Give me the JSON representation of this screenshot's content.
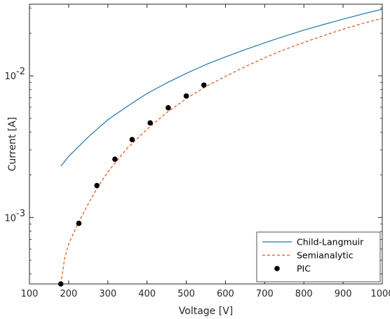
{
  "chart_data": {
    "type": "line",
    "title": "",
    "xlabel": "Voltage [V]",
    "ylabel": "Current [A]",
    "xlim": [
      100,
      1000
    ],
    "ylim": [
      0.00034,
      0.032
    ],
    "yscale": "log",
    "grid": false,
    "legend_position": "bottom-right",
    "x_ticks": [
      {
        "value": 100,
        "label": "100"
      },
      {
        "value": 200,
        "label": "200"
      },
      {
        "value": 300,
        "label": "300"
      },
      {
        "value": 400,
        "label": "400"
      },
      {
        "value": 500,
        "label": "500"
      },
      {
        "value": 600,
        "label": "600"
      },
      {
        "value": 700,
        "label": "700"
      },
      {
        "value": 800,
        "label": "800"
      },
      {
        "value": 900,
        "label": "900"
      },
      {
        "value": 1000,
        "label": "1000"
      }
    ],
    "y_ticks": [
      {
        "value": 0.001,
        "base": "10",
        "exp": "-3"
      },
      {
        "value": 0.01,
        "base": "10",
        "exp": "-2"
      }
    ],
    "series": [
      {
        "name": "Child-Langmuir",
        "style": "solid",
        "color": "#1f77b4",
        "x": [
          180,
          200,
          250,
          300,
          350,
          400,
          450,
          500,
          550,
          600,
          650,
          700,
          750,
          800,
          850,
          900,
          950,
          1000
        ],
        "y": [
          0.0023,
          0.0027,
          0.0037,
          0.0049,
          0.0061,
          0.0075,
          0.0089,
          0.0104,
          0.012,
          0.0136,
          0.0153,
          0.0171,
          0.019,
          0.021,
          0.023,
          0.0251,
          0.0273,
          0.0295
        ]
      },
      {
        "name": "Semianalytic",
        "style": "dashed",
        "color": "#d95319",
        "x": [
          180,
          190,
          200,
          225,
          250,
          275,
          300,
          350,
          400,
          450,
          500,
          550,
          600,
          650,
          700,
          750,
          800,
          850,
          900,
          950,
          1000
        ],
        "y": [
          0.00034,
          0.00052,
          0.00065,
          0.00092,
          0.00125,
          0.00165,
          0.0021,
          0.0031,
          0.0042,
          0.0055,
          0.0069,
          0.0084,
          0.0099,
          0.0116,
          0.0134,
          0.0153,
          0.0172,
          0.0192,
          0.0213,
          0.0234,
          0.0255
        ]
      },
      {
        "name": "PIC",
        "style": "marker",
        "color": "#000000",
        "x": [
          180,
          226,
          272,
          318,
          362,
          408,
          454,
          500,
          545
        ],
        "y": [
          0.00034,
          0.00091,
          0.00168,
          0.00258,
          0.00355,
          0.00465,
          0.00595,
          0.0072,
          0.0086
        ]
      }
    ]
  }
}
